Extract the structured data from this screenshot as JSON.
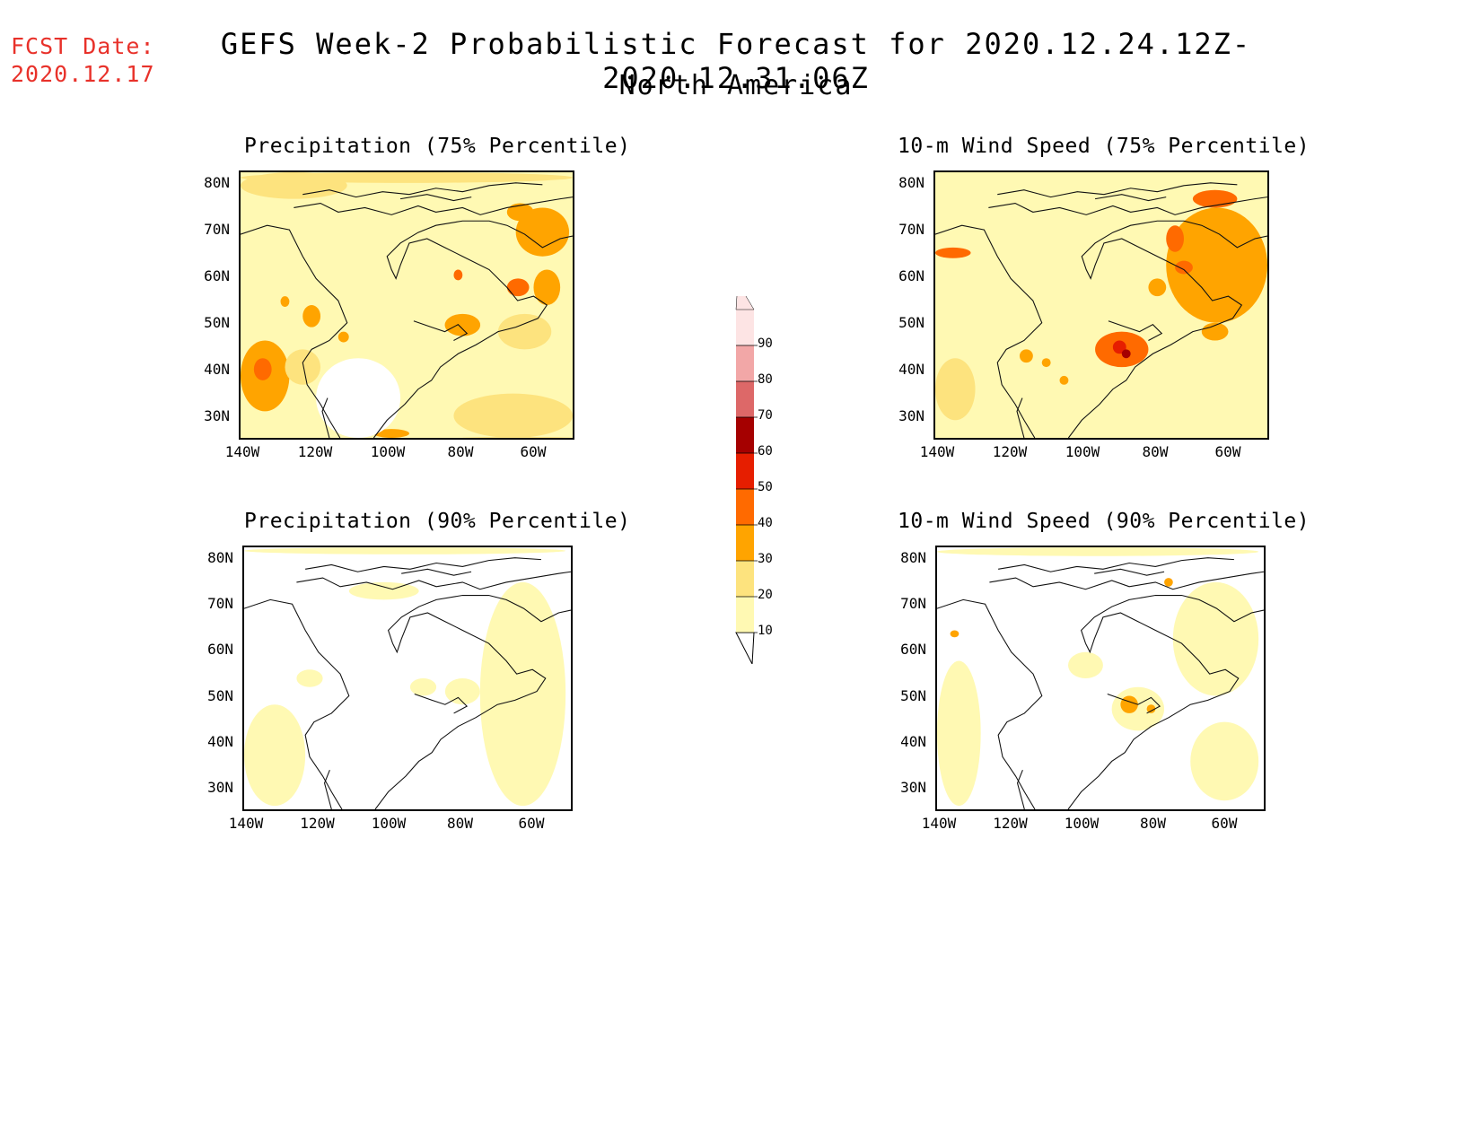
{
  "header": {
    "fcst_label": "FCST Date:",
    "fcst_date": "2020.12.17",
    "title": "GEFS Week-2 Probabilistic Forecast for 2020.12.24.12Z-2020.12.31.06Z",
    "subtitle": "North America"
  },
  "panels": [
    {
      "id": "p75",
      "title": "Precipitation (75% Percentile)",
      "variable": "precipitation",
      "percentile": 75
    },
    {
      "id": "w75",
      "title": "10-m Wind Speed (75% Percentile)",
      "variable": "wind",
      "percentile": 75
    },
    {
      "id": "p90",
      "title": "Precipitation (90% Percentile)",
      "variable": "precipitation",
      "percentile": 90
    },
    {
      "id": "w90",
      "title": "10-m Wind Speed (90% Percentile)",
      "variable": "wind",
      "percentile": 90
    }
  ],
  "axes": {
    "lat_labels": [
      "80N",
      "70N",
      "60N",
      "50N",
      "40N",
      "30N"
    ],
    "lon_labels": [
      "140W",
      "120W",
      "100W",
      "80W",
      "60W"
    ]
  },
  "legend": {
    "levels": [
      "10",
      "20",
      "30",
      "40",
      "50",
      "60",
      "70",
      "80",
      "90"
    ],
    "colors": [
      "#fff9b3",
      "#fde37e",
      "#ffa400",
      "#ff6a00",
      "#e61e00",
      "#a50000",
      "#dd6868",
      "#f2a7a7",
      "#fde4e4"
    ]
  }
}
